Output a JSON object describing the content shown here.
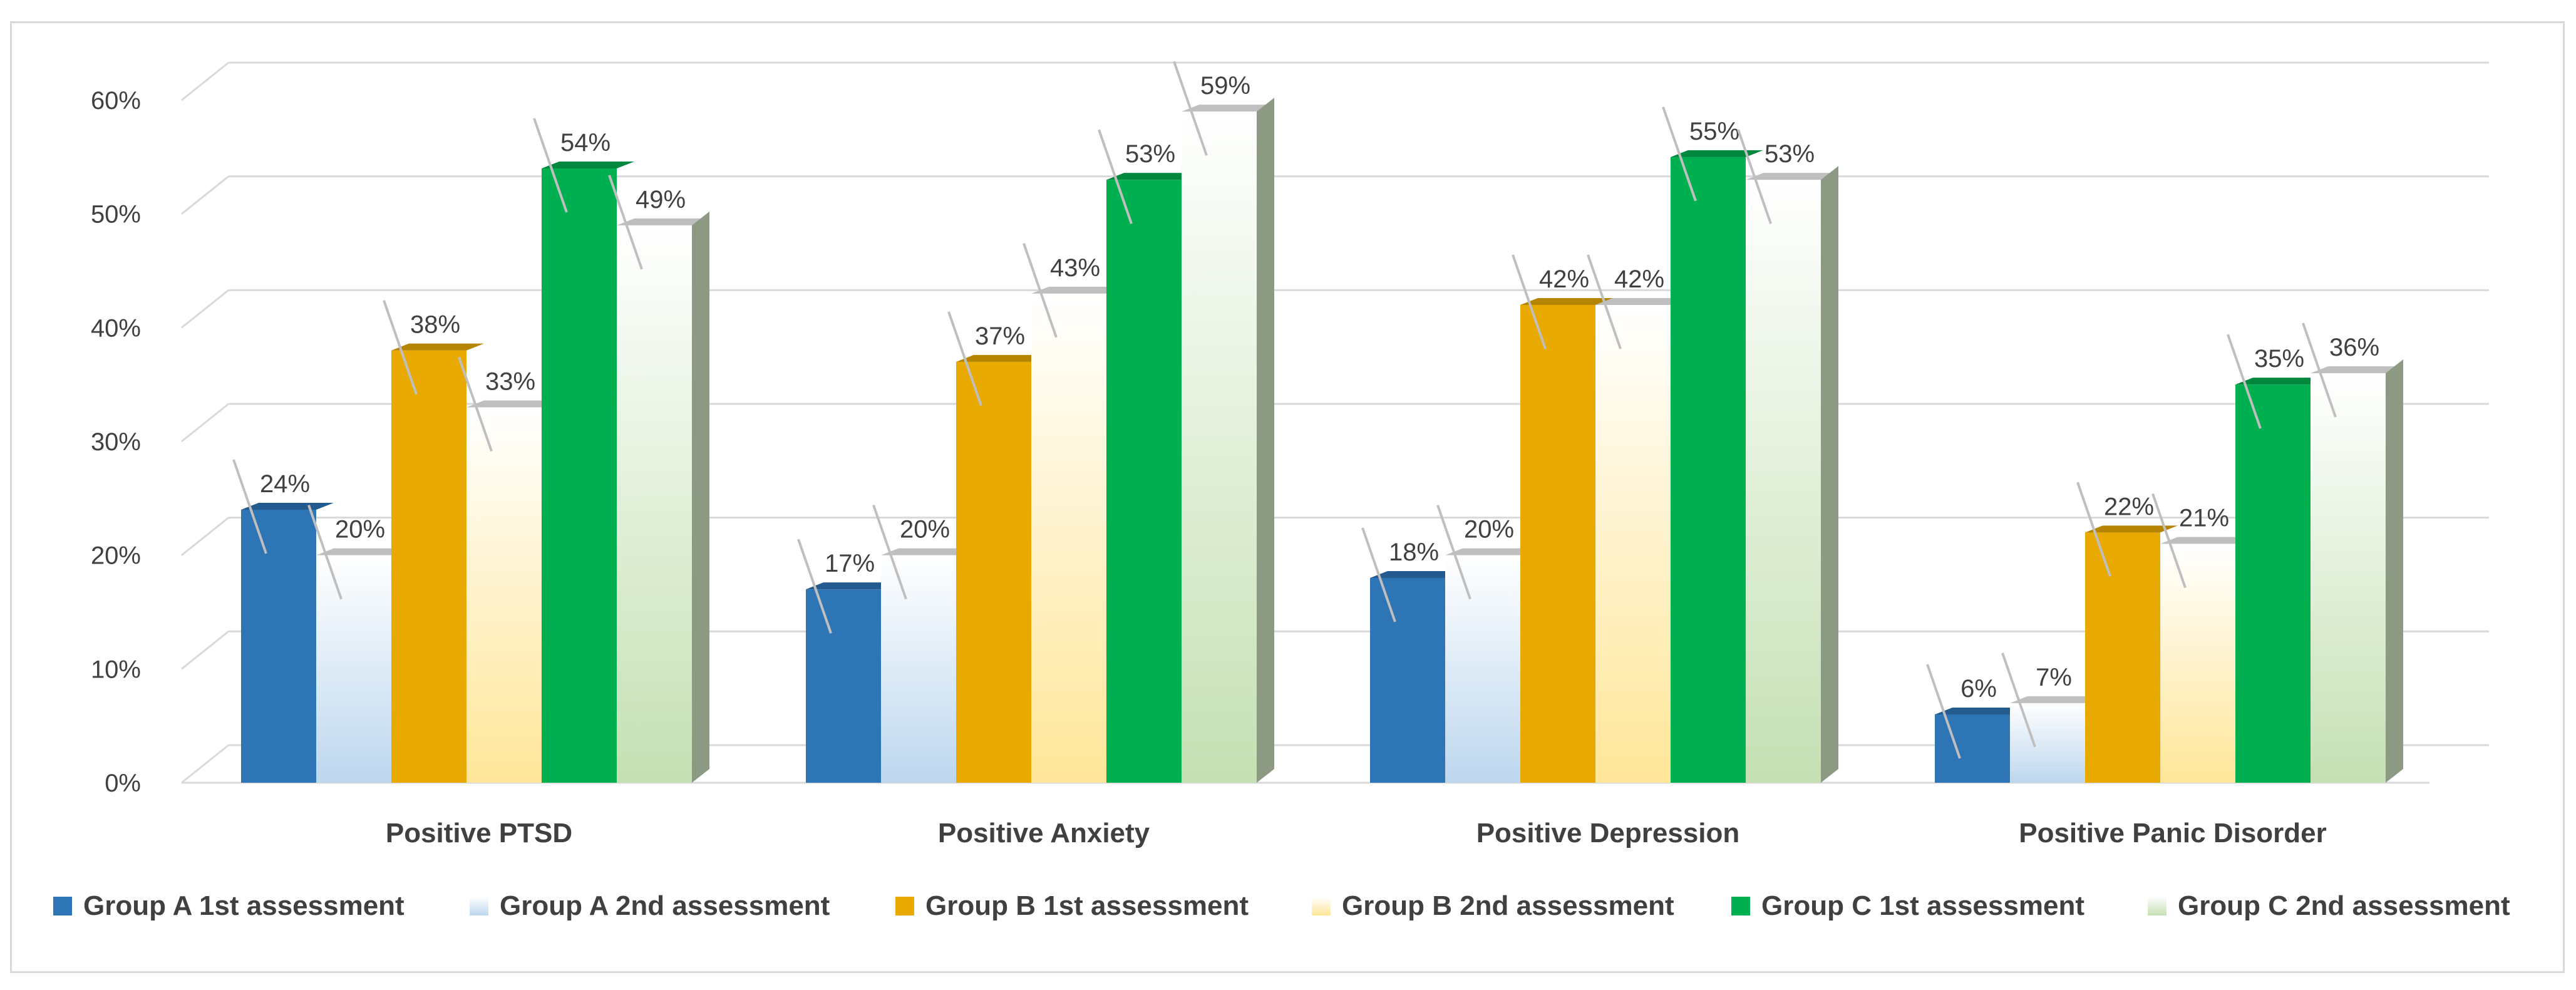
{
  "chart_data": {
    "type": "bar",
    "title": "",
    "xlabel": "",
    "ylabel": "",
    "ylim": [
      0,
      60
    ],
    "y_ticks": [
      "0%",
      "10%",
      "20%",
      "30%",
      "40%",
      "50%",
      "60%"
    ],
    "categories": [
      "Positive PTSD",
      "Positive Anxiety",
      "Positive Depression",
      "Positive Panic Disorder"
    ],
    "series": [
      {
        "name": "Group A 1st assessment",
        "values": [
          24,
          17,
          18,
          6
        ],
        "labels": [
          "24%",
          "17%",
          "18%",
          "6%"
        ],
        "color": "#2e75b6",
        "style": "solid"
      },
      {
        "name": "Group A 2nd assessment",
        "values": [
          20,
          20,
          20,
          7
        ],
        "labels": [
          "20%",
          "20%",
          "20%",
          "7%"
        ],
        "color": "#bdd7ee",
        "style": "gradient"
      },
      {
        "name": "Group B 1st assessment",
        "values": [
          38,
          37,
          42,
          22
        ],
        "labels": [
          "38%",
          "37%",
          "42%",
          "22%"
        ],
        "color": "#e8a900",
        "style": "solid"
      },
      {
        "name": "Group B 2nd assessment",
        "values": [
          33,
          43,
          42,
          21
        ],
        "labels": [
          "33%",
          "43%",
          "42%",
          "21%"
        ],
        "color": "#ffe699",
        "style": "gradient"
      },
      {
        "name": "Group C 1st assessment",
        "values": [
          54,
          53,
          55,
          35
        ],
        "labels": [
          "54%",
          "53%",
          "55%",
          "35%"
        ],
        "color": "#00b050",
        "style": "solid"
      },
      {
        "name": "Group C 2nd assessment",
        "values": [
          49,
          59,
          53,
          36
        ],
        "labels": [
          "49%",
          "59%",
          "53%",
          "36%"
        ],
        "color": "#c5e0b4",
        "style": "gradient"
      }
    ],
    "legend_position": "bottom",
    "grid": true
  }
}
